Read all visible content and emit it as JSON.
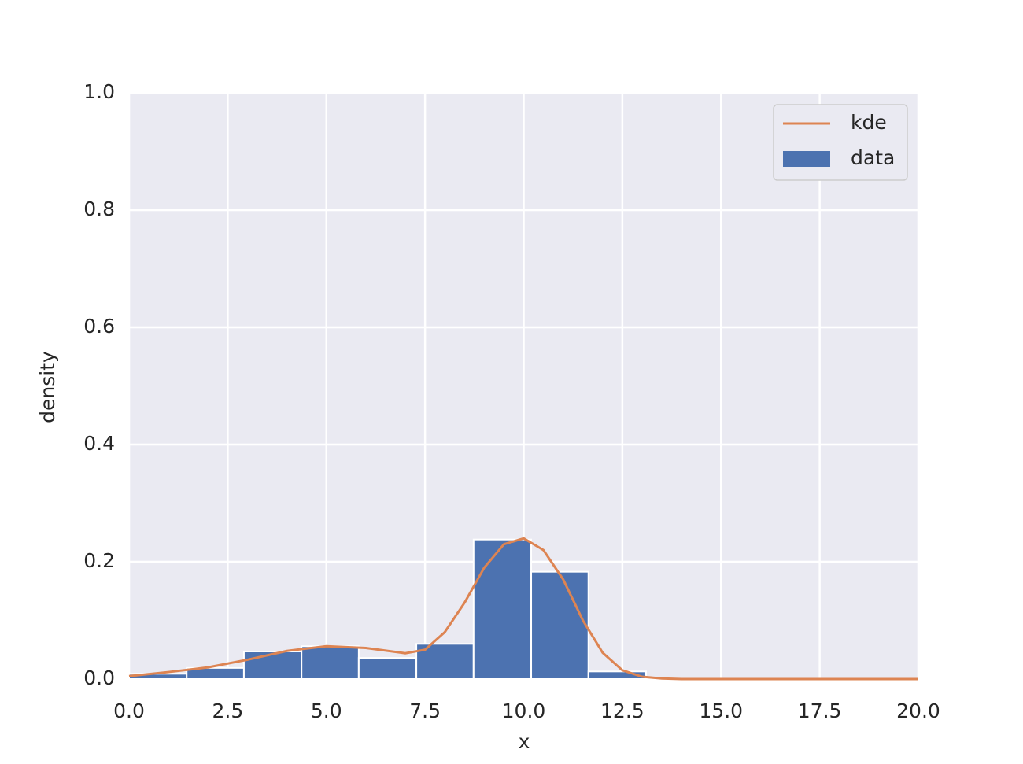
{
  "chart_data": {
    "type": "histogram",
    "name": "data",
    "color": "#4c72b0",
    "bins": [
      0,
      1.46,
      2.91,
      4.37,
      5.82,
      7.28,
      8.73,
      10.19,
      11.64,
      13.1
    ],
    "values": [
      0.009,
      0.019,
      0.047,
      0.056,
      0.036,
      0.06,
      0.238,
      0.183,
      0.013
    ],
    "kde": {
      "name": "kde",
      "color": "#dd8452",
      "x": [
        0,
        1,
        2,
        3,
        4,
        5,
        6,
        7,
        7.5,
        8,
        8.5,
        9,
        9.5,
        10,
        10.5,
        11,
        11.5,
        12,
        12.5,
        13,
        13.5,
        14,
        15,
        16,
        17,
        18,
        19,
        20
      ],
      "values": [
        0.005,
        0.012,
        0.02,
        0.033,
        0.048,
        0.056,
        0.053,
        0.044,
        0.05,
        0.08,
        0.13,
        0.19,
        0.23,
        0.24,
        0.22,
        0.17,
        0.1,
        0.045,
        0.015,
        0.004,
        0.001,
        0,
        0,
        0,
        0,
        0,
        0,
        0
      ]
    },
    "xlabel": "x",
    "ylabel": "density",
    "xlim": [
      0,
      20
    ],
    "ylim": [
      0,
      1
    ],
    "xticks": [
      {
        "value": 0,
        "label": "0.0"
      },
      2.5,
      {
        "value": 5,
        "label": "5.0"
      },
      7.5,
      {
        "value": 10,
        "label": "10.0"
      },
      12.5,
      {
        "value": 15,
        "label": "15.0"
      },
      17.5,
      {
        "value": 20,
        "label": "20.0"
      }
    ],
    "yticks": [
      {
        "value": 0,
        "label": "0.0"
      },
      0.2,
      0.4,
      0.6,
      0.8,
      {
        "value": 1,
        "label": "1.0"
      }
    ],
    "grid": true,
    "legend": "upper right"
  }
}
